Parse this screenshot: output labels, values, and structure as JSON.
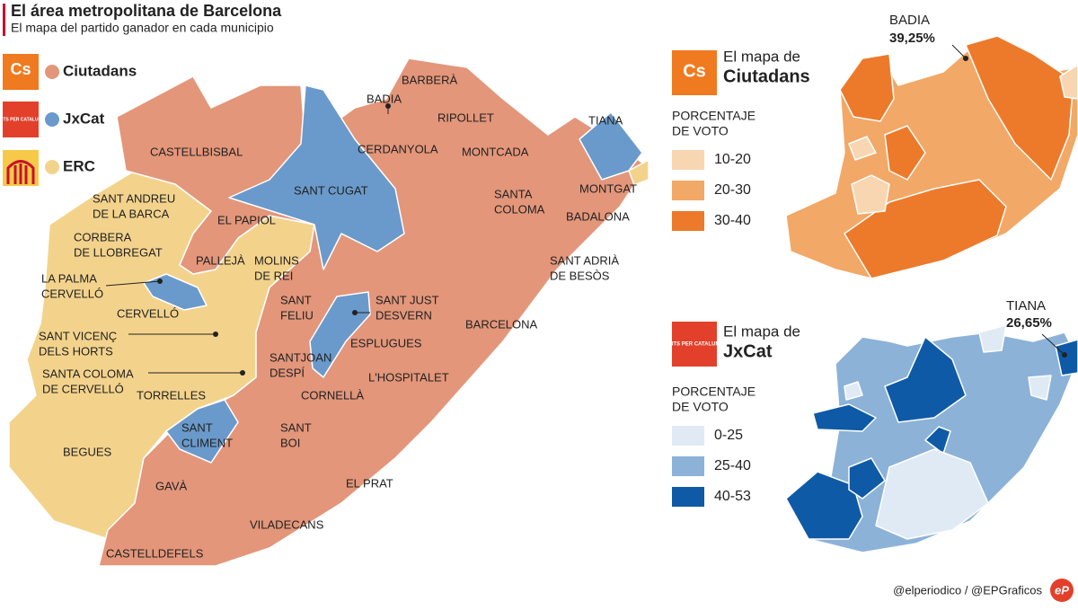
{
  "header": {
    "title": "El área metropolitana de Barcelona",
    "subtitle": "El mapa del partido ganador en cada municipio"
  },
  "parties": [
    {
      "name": "Ciutadans",
      "logo": "Cs",
      "color": "#e3967a"
    },
    {
      "name": "JxCat",
      "logo": "JUNTS PER CATALUNYA",
      "color": "#6a9acb"
    },
    {
      "name": "ERC",
      "color": "#f3d38c"
    }
  ],
  "municipalities": [
    {
      "lines": [
        "BARBERÀ"
      ]
    },
    {
      "lines": [
        "BADIA"
      ]
    },
    {
      "lines": [
        "RIPOLLET"
      ]
    },
    {
      "lines": [
        "CERDANYOLA"
      ]
    },
    {
      "lines": [
        "MONTCADA"
      ]
    },
    {
      "lines": [
        "TIANA"
      ]
    },
    {
      "lines": [
        "CASTELLBISBAL"
      ]
    },
    {
      "lines": [
        "SANT CUGAT"
      ]
    },
    {
      "lines": [
        "MONTGAT"
      ]
    },
    {
      "lines": [
        "SANT ANDREU",
        "DE LA BARCA"
      ]
    },
    {
      "lines": [
        "SANTA",
        "COLOMA"
      ]
    },
    {
      "lines": [
        "BADALONA"
      ]
    },
    {
      "lines": [
        "EL PAPIOL"
      ]
    },
    {
      "lines": [
        "CORBERA",
        "DE LLOBREGAT"
      ]
    },
    {
      "lines": [
        "MOLINS",
        "DE REI"
      ]
    },
    {
      "lines": [
        "PALLEJÀ"
      ]
    },
    {
      "lines": [
        "SANT ADRIÀ",
        "DE BESÒS"
      ]
    },
    {
      "lines": [
        "LA PALMA",
        "CERVELLÓ"
      ]
    },
    {
      "lines": [
        "SANT",
        "FELIU"
      ]
    },
    {
      "lines": [
        "SANT JUST",
        "DESVERN"
      ]
    },
    {
      "lines": [
        "CERVELLÓ"
      ]
    },
    {
      "lines": [
        "BARCELONA"
      ]
    },
    {
      "lines": [
        "SANT VICENÇ",
        "DELS HORTS"
      ]
    },
    {
      "lines": [
        "ESPLUGUES"
      ]
    },
    {
      "lines": [
        "SANTJOAN",
        "DESPÍ"
      ]
    },
    {
      "lines": [
        "SANTA COLOMA",
        "DE CERVELLÓ"
      ]
    },
    {
      "lines": [
        "L'HOSPITALET"
      ]
    },
    {
      "lines": [
        "TORRELLES"
      ]
    },
    {
      "lines": [
        "CORNELLÀ"
      ]
    },
    {
      "lines": [
        "SANT",
        "BOI"
      ]
    },
    {
      "lines": [
        "SANT",
        "CLIMENT"
      ]
    },
    {
      "lines": [
        "BEGUES"
      ]
    },
    {
      "lines": [
        "EL PRAT"
      ]
    },
    {
      "lines": [
        "GAVÀ"
      ]
    },
    {
      "lines": [
        "VILADECANS"
      ]
    },
    {
      "lines": [
        "CASTELLDEFELS"
      ]
    }
  ],
  "maps": [
    {
      "prefix": "El mapa de",
      "party": "Ciutadans",
      "legend_title": [
        "PORCENTAJE",
        "DE VOTO"
      ],
      "bins": [
        {
          "label": "10-20",
          "color": "#f8d6b2"
        },
        {
          "label": "20-30",
          "color": "#f2a866"
        },
        {
          "label": "30-40",
          "color": "#ec7a2a"
        }
      ],
      "callout": {
        "name": "BADIA",
        "value": "39,25%"
      }
    },
    {
      "prefix": "El mapa de",
      "party": "JxCat",
      "legend_title": [
        "PORCENTAJE",
        "DE VOTO"
      ],
      "bins": [
        {
          "label": "0-25",
          "color": "#dfeaf5"
        },
        {
          "label": "25-40",
          "color": "#8cb2d8"
        },
        {
          "label": "40-53",
          "color": "#0f5aa6"
        }
      ],
      "callout": {
        "name": "TIANA",
        "value": "26,65%"
      }
    }
  ],
  "footer": {
    "credit": "@elperiodico / @EPGraficos",
    "logo": "eP"
  }
}
